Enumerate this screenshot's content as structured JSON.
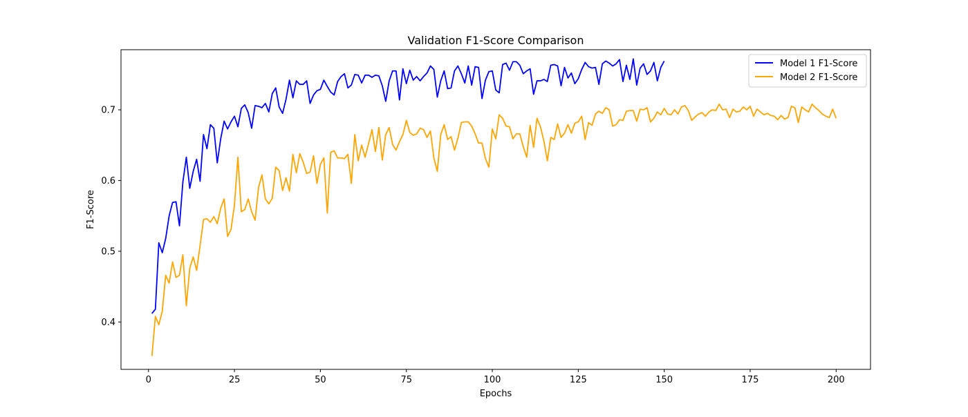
{
  "chart_data": {
    "type": "line",
    "title": "Validation F1-Score Comparison",
    "xlabel": "Epochs",
    "ylabel": "F1-Score",
    "xlim": [
      -8,
      210
    ],
    "ylim": [
      0.333,
      0.785
    ],
    "xticks": [
      0,
      25,
      50,
      75,
      100,
      125,
      150,
      175,
      200
    ],
    "yticks": [
      0.4,
      0.5,
      0.6,
      0.7
    ],
    "ytick_labels": [
      "0.4",
      "0.5",
      "0.6",
      "0.7"
    ],
    "grid": false,
    "legend_position": "top-right",
    "series": [
      {
        "name": "Model 1 F1-Score",
        "color": "#0000ff",
        "x_start": 1,
        "values": [
          0.412,
          0.418,
          0.512,
          0.498,
          0.518,
          0.55,
          0.569,
          0.57,
          0.536,
          0.598,
          0.633,
          0.589,
          0.613,
          0.63,
          0.599,
          0.665,
          0.645,
          0.679,
          0.674,
          0.625,
          0.659,
          0.684,
          0.673,
          0.683,
          0.691,
          0.676,
          0.702,
          0.707,
          0.696,
          0.674,
          0.706,
          0.705,
          0.703,
          0.709,
          0.697,
          0.723,
          0.731,
          0.704,
          0.695,
          0.715,
          0.742,
          0.717,
          0.741,
          0.736,
          0.736,
          0.741,
          0.709,
          0.721,
          0.727,
          0.729,
          0.742,
          0.733,
          0.725,
          0.721,
          0.74,
          0.747,
          0.751,
          0.731,
          0.735,
          0.75,
          0.749,
          0.738,
          0.749,
          0.749,
          0.746,
          0.749,
          0.748,
          0.734,
          0.712,
          0.741,
          0.755,
          0.755,
          0.714,
          0.758,
          0.737,
          0.756,
          0.742,
          0.747,
          0.741,
          0.747,
          0.752,
          0.762,
          0.757,
          0.718,
          0.741,
          0.755,
          0.73,
          0.731,
          0.755,
          0.762,
          0.751,
          0.738,
          0.762,
          0.735,
          0.761,
          0.76,
          0.716,
          0.742,
          0.754,
          0.755,
          0.728,
          0.724,
          0.764,
          0.766,
          0.756,
          0.768,
          0.768,
          0.763,
          0.751,
          0.755,
          0.758,
          0.722,
          0.741,
          0.741,
          0.743,
          0.74,
          0.763,
          0.764,
          0.762,
          0.734,
          0.76,
          0.745,
          0.752,
          0.737,
          0.744,
          0.757,
          0.767,
          0.761,
          0.759,
          0.76,
          0.736,
          0.765,
          0.769,
          0.766,
          0.762,
          0.765,
          0.771,
          0.74,
          0.763,
          0.743,
          0.772,
          0.735,
          0.759,
          0.765,
          0.75,
          0.755,
          0.767,
          0.741,
          0.76,
          0.769
        ]
      },
      {
        "name": "Model 2 F1-Score",
        "color": "#ffa500",
        "x_start": 1,
        "values": [
          0.352,
          0.408,
          0.396,
          0.415,
          0.466,
          0.455,
          0.485,
          0.463,
          0.466,
          0.495,
          0.423,
          0.476,
          0.492,
          0.473,
          0.508,
          0.545,
          0.546,
          0.541,
          0.549,
          0.539,
          0.561,
          0.574,
          0.521,
          0.531,
          0.565,
          0.633,
          0.556,
          0.559,
          0.574,
          0.556,
          0.544,
          0.59,
          0.608,
          0.574,
          0.567,
          0.575,
          0.619,
          0.614,
          0.586,
          0.604,
          0.585,
          0.637,
          0.611,
          0.638,
          0.626,
          0.61,
          0.612,
          0.635,
          0.596,
          0.623,
          0.632,
          0.554,
          0.64,
          0.642,
          0.632,
          0.632,
          0.631,
          0.637,
          0.596,
          0.665,
          0.628,
          0.65,
          0.633,
          0.652,
          0.672,
          0.641,
          0.675,
          0.629,
          0.665,
          0.675,
          0.651,
          0.643,
          0.655,
          0.665,
          0.685,
          0.668,
          0.664,
          0.666,
          0.674,
          0.672,
          0.661,
          0.67,
          0.632,
          0.613,
          0.665,
          0.679,
          0.658,
          0.662,
          0.643,
          0.66,
          0.682,
          0.683,
          0.683,
          0.677,
          0.666,
          0.653,
          0.653,
          0.631,
          0.619,
          0.673,
          0.659,
          0.693,
          0.688,
          0.677,
          0.676,
          0.659,
          0.666,
          0.666,
          0.648,
          0.633,
          0.678,
          0.647,
          0.688,
          0.676,
          0.656,
          0.628,
          0.661,
          0.658,
          0.68,
          0.661,
          0.667,
          0.679,
          0.667,
          0.681,
          0.683,
          0.691,
          0.658,
          0.682,
          0.678,
          0.694,
          0.698,
          0.695,
          0.703,
          0.7,
          0.677,
          0.679,
          0.686,
          0.685,
          0.698,
          0.699,
          0.699,
          0.684,
          0.701,
          0.7,
          0.703,
          0.683,
          0.688,
          0.697,
          0.693,
          0.702,
          0.694,
          0.693,
          0.7,
          0.694,
          0.704,
          0.706,
          0.699,
          0.685,
          0.69,
          0.694,
          0.696,
          0.691,
          0.697,
          0.7,
          0.699,
          0.708,
          0.7,
          0.701,
          0.689,
          0.701,
          0.697,
          0.698,
          0.704,
          0.7,
          0.705,
          0.691,
          0.701,
          0.697,
          0.693,
          0.695,
          0.692,
          0.691,
          0.686,
          0.692,
          0.687,
          0.689,
          0.705,
          0.703,
          0.682,
          0.704,
          0.7,
          0.697,
          0.708,
          0.703,
          0.699,
          0.694,
          0.691,
          0.689,
          0.701,
          0.688
        ]
      }
    ]
  }
}
